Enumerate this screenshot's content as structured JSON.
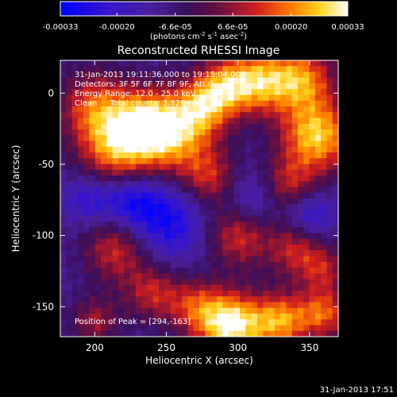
{
  "title": "Reconstructed RHESSI Image",
  "timestamp": "31-Jan-2013 17:51",
  "colorbar": {
    "ticks": [
      "-0.00033",
      "-0.00020",
      "-6.6e-05",
      "6.6e-05",
      "0.00020",
      "0.00033"
    ],
    "unit_prefix": "(photons cm",
    "unit_exp1": "-2",
    "unit_mid": " s",
    "unit_exp2": "-1",
    "unit_mid2": " asec",
    "unit_exp3": "-2",
    "unit_suffix": ")",
    "range": [
      -0.00033,
      0.00033
    ]
  },
  "annotations": {
    "line1": "31-Jan-2013 19:11:36.000 to 19:15:04.000",
    "line2": "Detectors: 3F 5F 6F 7F 8F 9F, Att 0",
    "line3": "Energy Range: 12.0 - 25.0 keV",
    "line4": "Clean     Total counts: 3.82E+03",
    "peak": "Position of Peak = [294,-163]"
  },
  "chart_data": {
    "type": "heatmap",
    "title": "Reconstructed RHESSI Image",
    "xlabel": "Heliocentric X (arcsec)",
    "ylabel": "Heliocentric Y (arcsec)",
    "xlim": [
      176,
      370
    ],
    "ylim": [
      -171,
      23
    ],
    "xticks": [
      200,
      250,
      300,
      350
    ],
    "yticks": [
      0,
      -50,
      -100,
      -150
    ],
    "colormap": "blue-purple-red-yellow-white",
    "value_range": [
      -0.00033,
      0.00033
    ],
    "peak_position": [
      294,
      -163
    ],
    "grid_size": [
      48,
      48
    ],
    "cell_arcsec": 4,
    "blobs": [
      {
        "x": 200,
        "y": -10,
        "s": 18,
        "a": 0.9
      },
      {
        "x": 215,
        "y": -40,
        "s": 18,
        "a": 1.0
      },
      {
        "x": 235,
        "y": -20,
        "s": 16,
        "a": 0.9
      },
      {
        "x": 255,
        "y": -30,
        "s": 20,
        "a": 1.1
      },
      {
        "x": 275,
        "y": -10,
        "s": 14,
        "a": 0.8
      },
      {
        "x": 290,
        "y": 5,
        "s": 14,
        "a": 0.9
      },
      {
        "x": 315,
        "y": 8,
        "s": 16,
        "a": 1.1
      },
      {
        "x": 345,
        "y": 10,
        "s": 16,
        "a": 1.0
      },
      {
        "x": 355,
        "y": -30,
        "s": 18,
        "a": 1.3
      },
      {
        "x": 335,
        "y": -65,
        "s": 14,
        "a": 0.7
      },
      {
        "x": 280,
        "y": -60,
        "s": 14,
        "a": 0.7
      },
      {
        "x": 300,
        "y": -100,
        "s": 16,
        "a": 0.8
      },
      {
        "x": 340,
        "y": -110,
        "s": 14,
        "a": 0.7
      },
      {
        "x": 360,
        "y": -125,
        "s": 12,
        "a": 0.6
      },
      {
        "x": 215,
        "y": -110,
        "s": 16,
        "a": 0.8
      },
      {
        "x": 240,
        "y": -140,
        "s": 14,
        "a": 0.7
      },
      {
        "x": 270,
        "y": -150,
        "s": 14,
        "a": 0.7
      },
      {
        "x": 295,
        "y": -163,
        "s": 16,
        "a": 1.5
      },
      {
        "x": 330,
        "y": -160,
        "s": 14,
        "a": 1.1
      },
      {
        "x": 360,
        "y": -155,
        "s": 12,
        "a": 0.9
      },
      {
        "x": 200,
        "y": -160,
        "s": 12,
        "a": 0.6
      },
      {
        "x": 250,
        "y": -90,
        "s": 20,
        "a": -0.7
      },
      {
        "x": 225,
        "y": -75,
        "s": 14,
        "a": -0.6
      },
      {
        "x": 310,
        "y": -75,
        "s": 14,
        "a": -0.5
      },
      {
        "x": 195,
        "y": -75,
        "s": 12,
        "a": -0.5
      },
      {
        "x": 350,
        "y": -85,
        "s": 12,
        "a": -0.6
      }
    ]
  }
}
